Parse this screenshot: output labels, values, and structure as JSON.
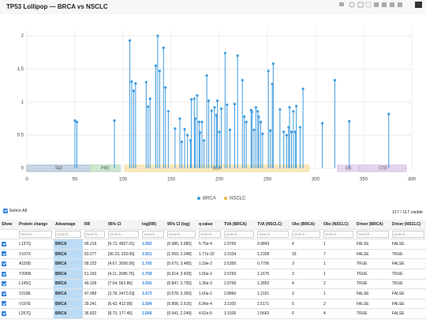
{
  "chart_data": {
    "type": "lollipop",
    "title": "TP53 Lollipop — BRCA vs NSCLC",
    "xlim": [
      0,
      400
    ],
    "xticks": [
      0,
      50,
      100,
      150,
      200,
      250,
      300,
      350,
      400
    ],
    "ylim": [
      0,
      2.1
    ],
    "yticks": [
      0,
      0.5,
      1,
      1.5,
      2
    ],
    "grid": true,
    "legend": "bottom",
    "domains": [
      {
        "name": "TAD",
        "start": 0,
        "end": 66,
        "color": "#9fb8d0"
      },
      {
        "name": "PRD",
        "start": 66,
        "end": 97,
        "color": "#a9d6b0"
      },
      {
        "name": "DBD",
        "start": 102,
        "end": 293,
        "color": "#f5d98c"
      },
      {
        "name": "OD",
        "start": 323,
        "end": 345,
        "color": "#d7bde6"
      },
      {
        "name": "CTD",
        "start": 346,
        "end": 394,
        "color": "#d2b6e0"
      }
    ],
    "series": [
      {
        "name": "BRCA",
        "color": "#3d9be0",
        "x": [
          50,
          52,
          91,
          107,
          109,
          111,
          113,
          124,
          126,
          128,
          134,
          136,
          138,
          142,
          144,
          147,
          154,
          159,
          161,
          164,
          167,
          170,
          171,
          174,
          175,
          177,
          179,
          180,
          182,
          184,
          187,
          189,
          192,
          195,
          197,
          198,
          200,
          202,
          206,
          208,
          211,
          216,
          219,
          224,
          226,
          228,
          233,
          234,
          236,
          238,
          240,
          241,
          243,
          245,
          251,
          253,
          255,
          256,
          263,
          267,
          270,
          272,
          273,
          275,
          277,
          279,
          280,
          284,
          287,
          307,
          320,
          335,
          376
        ],
        "values": [
          0.72,
          0.7,
          0.72,
          1.93,
          1.31,
          1.17,
          1.28,
          1.3,
          0.93,
          1.05,
          1.55,
          2.0,
          1.47,
          1.82,
          1.22,
          0.86,
          0.6,
          0.75,
          0.4,
          0.59,
          0.5,
          0.42,
          1.04,
          1.05,
          0.75,
          1.1,
          0.7,
          0.54,
          0.7,
          0.42,
          1.4,
          1.02,
          0.87,
          0.92,
          0.8,
          1.02,
          0.55,
          0.9,
          1.74,
          0.96,
          0.58,
          0.97,
          1.7,
          1.33,
          0.78,
          0.7,
          0.88,
          0.85,
          0.58,
          0.92,
          0.86,
          0.78,
          0.7,
          0.52,
          1.47,
          0.57,
          1.27,
          1.58,
          0.89,
          0.55,
          0.5,
          0.62,
          0.92,
          0.55,
          0.86,
          0.55,
          0.94,
          0.62,
          1.2,
          0.68,
          1.33,
          0.71,
          0.82
        ]
      },
      {
        "name": "NSCLC",
        "color": "#f0b43c",
        "x": [],
        "values": []
      }
    ]
  },
  "controls": {
    "select_all": "Select All",
    "visible": "117 / 117 visible",
    "search": "Search..."
  },
  "table": {
    "columns": [
      "Show",
      "Protein change",
      "Advantage",
      "RR",
      "95% CI",
      "log(RR)",
      "95% CI (log)",
      "q-value",
      "TVA (BRCA)",
      "TVA (NSCLC)",
      "Obs (BRCA)",
      "Obs (NSCLC)",
      "Driver (BRCA)",
      "Driver (NSCLC)"
    ],
    "rows": [
      [
        "L137Q",
        "BRCA",
        "99.219",
        "[9.72, 4837.01]",
        "1.992",
        "[0.986, 3.685]",
        "5.75e-4",
        "2.9765",
        "0.9843",
        "4",
        "1",
        "FALSE",
        "FALSE"
      ],
      [
        "Y107X",
        "BRCA",
        "83.277",
        "[36.23, 223.06]",
        "1.921",
        "[1.559, 2.348]",
        "1.77e-32",
        "3.1534",
        "1.2328",
        "33",
        "7",
        "FALSE",
        "TRUE"
      ],
      [
        "A159D",
        "BRCA",
        "58.223",
        "[4.67, 3056.56]",
        "1.765",
        "[0.670, 3.485]",
        "1.18e-2",
        "2.5350",
        "0.7700",
        "3",
        "1",
        "TRUE",
        "FALSE"
      ],
      [
        "Y205N",
        "BRCA",
        "51.160",
        "[4.11, 2685.76]",
        "1.709",
        "[0.614, 3.429]",
        "1.60e-2",
        "2.9765",
        "1.1676",
        "3",
        "1",
        "TRUE",
        "TRUE"
      ],
      [
        "L145Q",
        "BRCA",
        "49.109",
        "[7.04, 562.86]",
        "1.691",
        "[0.847, 2.735]",
        "1.36e-3",
        "2.9765",
        "1.2853",
        "4",
        "2",
        "TRUE",
        "TRUE"
      ],
      [
        "V218E",
        "BRCA",
        "47.089",
        "[3.78, 2472.03]",
        "1.673",
        "[0.578, 3.393]",
        "1.60e-2",
        "2.8860",
        "1.2161",
        "3",
        "1",
        "FALSE",
        "FALSE"
      ],
      [
        "V197E",
        "BRCA",
        "39.241",
        "[6.42, 412.08]",
        "1.594",
        "[0.808, 2.615]",
        "6.96e-4",
        "3.1109",
        "1.5171",
        "5",
        "2",
        "FALSE",
        "FALSE"
      ],
      [
        "L257Q",
        "BRCA",
        "36.832",
        "[8.73, 177.45]",
        "1.566",
        "[0.941, 2.249]",
        "4.52e-5",
        "3.1526",
        "1.5663",
        "6",
        "4",
        "TRUE",
        "FALSE"
      ]
    ]
  }
}
